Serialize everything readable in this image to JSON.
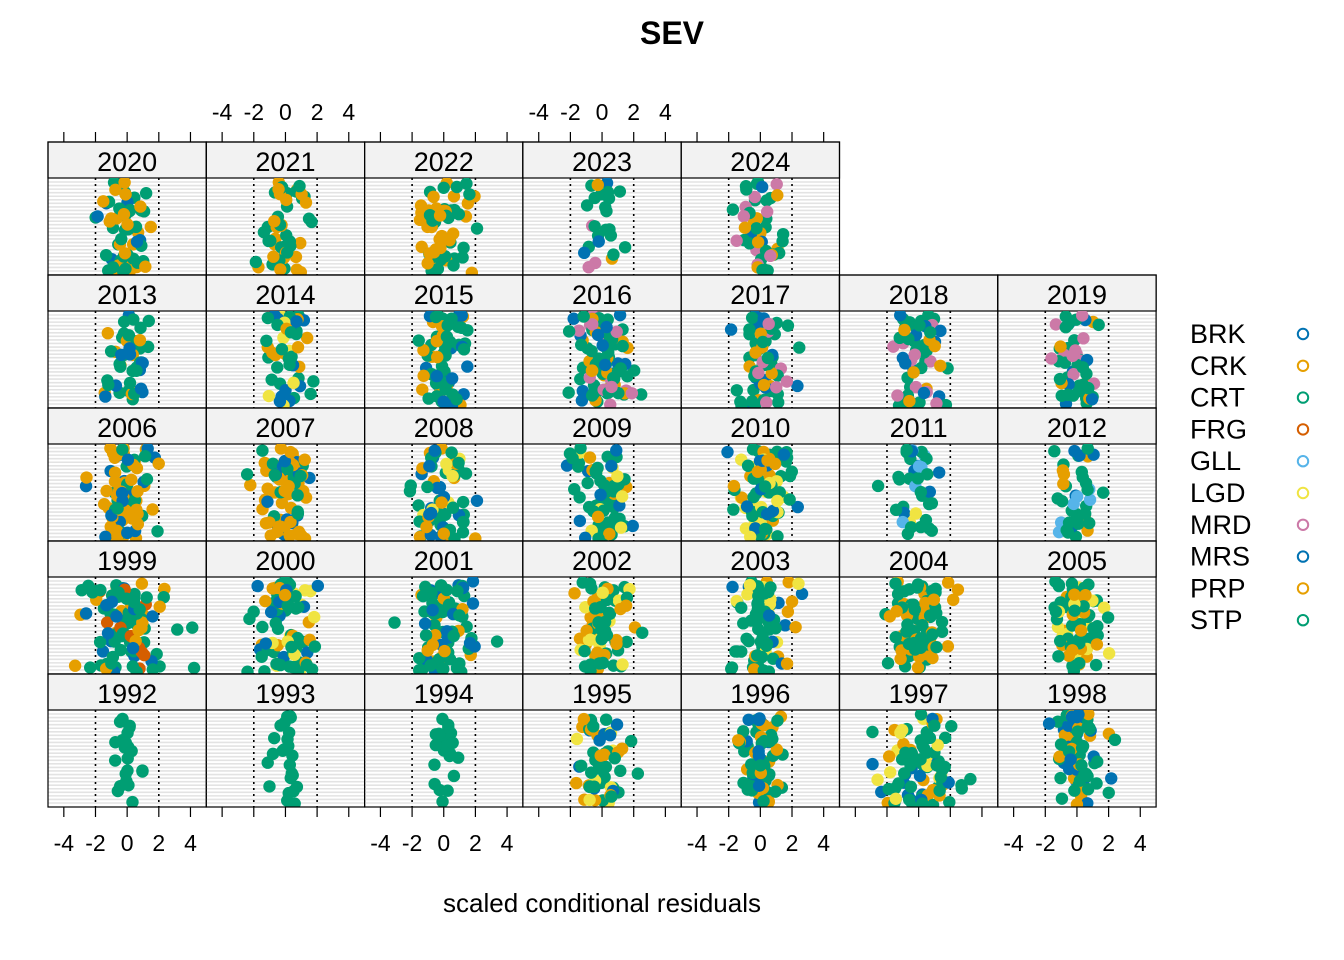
{
  "chart_data": {
    "type": "scatter",
    "title": "SEV",
    "xlabel": "scaled conditional residuals",
    "ylabel": "",
    "xlim": [
      -5,
      5
    ],
    "x_ticks": [
      -4,
      -2,
      0,
      2,
      4
    ],
    "x_tick_labels": [
      "-4",
      "-2",
      "0",
      "2",
      "4"
    ],
    "reference_lines": [
      -2,
      2
    ],
    "grid": true,
    "legend_placement": "right",
    "series": [
      {
        "name": "BRK",
        "color": "#0072B2"
      },
      {
        "name": "CRK",
        "color": "#E69F00"
      },
      {
        "name": "CRT",
        "color": "#009E73"
      },
      {
        "name": "FRG",
        "color": "#D55E00"
      },
      {
        "name": "GLL",
        "color": "#56B4E9"
      },
      {
        "name": "LGD",
        "color": "#F0E442"
      },
      {
        "name": "MRD",
        "color": "#CC79A7"
      },
      {
        "name": "MRS",
        "color": "#0072B2"
      },
      {
        "name": "PRP",
        "color": "#E69F00"
      },
      {
        "name": "STP",
        "color": "#009E73"
      }
    ],
    "panel_rows": [
      [
        "2020",
        "2021",
        "2022",
        "2023",
        "2024"
      ],
      [
        "2013",
        "2014",
        "2015",
        "2016",
        "2017",
        "2018",
        "2019"
      ],
      [
        "2006",
        "2007",
        "2008",
        "2009",
        "2010",
        "2011",
        "2012"
      ],
      [
        "1999",
        "2000",
        "2001",
        "2002",
        "2003",
        "2004",
        "2005"
      ],
      [
        "1992",
        "1993",
        "1994",
        "1995",
        "1996",
        "1997",
        "1998"
      ]
    ],
    "panels": {
      "1992": {
        "groups": [
          "STP"
        ],
        "center": 0.0,
        "spread": 0.7,
        "n": 22
      },
      "1993": {
        "groups": [
          "STP"
        ],
        "center": 0.0,
        "spread": 0.8,
        "n": 24
      },
      "1994": {
        "groups": [
          "STP"
        ],
        "center": 0.0,
        "spread": 0.7,
        "n": 22
      },
      "1995": {
        "groups": [
          "STP",
          "CRK",
          "LGD",
          "BRK"
        ],
        "center": 0.0,
        "spread": 1.6,
        "n": 60
      },
      "1996": {
        "groups": [
          "STP",
          "CRK",
          "BRK"
        ],
        "center": 0.0,
        "spread": 1.7,
        "n": 80
      },
      "1997": {
        "groups": [
          "STP",
          "LGD",
          "BRK",
          "CRK"
        ],
        "center": 0.0,
        "spread": 2.0,
        "n": 90
      },
      "1998": {
        "groups": [
          "STP",
          "CRK",
          "BRK"
        ],
        "center": 0.0,
        "spread": 1.5,
        "n": 80
      },
      "1999": {
        "groups": [
          "STP",
          "BRK",
          "CRK",
          "FRG"
        ],
        "center": 0.0,
        "spread": 2.3,
        "n": 110
      },
      "2000": {
        "groups": [
          "STP",
          "CRK",
          "BRK",
          "LGD"
        ],
        "center": 0.0,
        "spread": 1.7,
        "n": 80
      },
      "2001": {
        "groups": [
          "STP",
          "CRK",
          "BRK"
        ],
        "center": 0.0,
        "spread": 1.8,
        "n": 80
      },
      "2002": {
        "groups": [
          "STP",
          "LGD",
          "CRK"
        ],
        "center": 0.0,
        "spread": 1.7,
        "n": 80
      },
      "2003": {
        "groups": [
          "STP",
          "CRK",
          "LGD",
          "BRK"
        ],
        "center": 0.0,
        "spread": 1.9,
        "n": 80
      },
      "2004": {
        "groups": [
          "STP",
          "CRK"
        ],
        "center": 0.0,
        "spread": 1.8,
        "n": 80
      },
      "2005": {
        "groups": [
          "STP",
          "CRK",
          "LGD"
        ],
        "center": 0.0,
        "spread": 1.3,
        "n": 70
      },
      "2006": {
        "groups": [
          "CRK",
          "STP",
          "BRK"
        ],
        "center": 0.0,
        "spread": 1.7,
        "n": 80
      },
      "2007": {
        "groups": [
          "CRK",
          "STP",
          "BRK"
        ],
        "center": 0.0,
        "spread": 1.8,
        "n": 80
      },
      "2008": {
        "groups": [
          "STP",
          "CRK",
          "LGD",
          "BRK"
        ],
        "center": 0.0,
        "spread": 1.6,
        "n": 70
      },
      "2009": {
        "groups": [
          "STP",
          "LGD",
          "CRK",
          "BRK"
        ],
        "center": 0.0,
        "spread": 1.6,
        "n": 70
      },
      "2010": {
        "groups": [
          "STP",
          "LGD",
          "CRK",
          "BRK"
        ],
        "center": 0.0,
        "spread": 1.8,
        "n": 80
      },
      "2011": {
        "groups": [
          "STP",
          "LGD",
          "GLL",
          "BRK"
        ],
        "center": 0.0,
        "spread": 1.4,
        "n": 40
      },
      "2012": {
        "groups": [
          "STP",
          "GLL",
          "CRK",
          "BRK"
        ],
        "center": 0.0,
        "spread": 1.3,
        "n": 40
      },
      "2013": {
        "groups": [
          "STP",
          "CRK",
          "BRK"
        ],
        "center": 0.0,
        "spread": 1.2,
        "n": 50
      },
      "2014": {
        "groups": [
          "STP",
          "CRK",
          "BRK",
          "LGD"
        ],
        "center": 0.0,
        "spread": 1.2,
        "n": 50
      },
      "2015": {
        "groups": [
          "STP",
          "CRK",
          "BRK"
        ],
        "center": 0.0,
        "spread": 1.5,
        "n": 70
      },
      "2016": {
        "groups": [
          "STP",
          "CRK",
          "BRK",
          "MRD"
        ],
        "center": 0.0,
        "spread": 1.8,
        "n": 90
      },
      "2017": {
        "groups": [
          "STP",
          "CRK",
          "BRK",
          "MRD"
        ],
        "center": 0.0,
        "spread": 1.6,
        "n": 70
      },
      "2018": {
        "groups": [
          "STP",
          "CRK",
          "MRD",
          "BRK"
        ],
        "center": 0.0,
        "spread": 1.6,
        "n": 60
      },
      "2019": {
        "groups": [
          "STP",
          "CRK",
          "BRK",
          "MRD"
        ],
        "center": 0.0,
        "spread": 1.4,
        "n": 50
      },
      "2020": {
        "groups": [
          "STP",
          "CRK",
          "BRK"
        ],
        "center": 0.0,
        "spread": 1.5,
        "n": 60
      },
      "2021": {
        "groups": [
          "STP",
          "CRK"
        ],
        "center": 0.0,
        "spread": 1.4,
        "n": 50
      },
      "2022": {
        "groups": [
          "STP",
          "CRK"
        ],
        "center": 0.0,
        "spread": 1.5,
        "n": 60
      },
      "2023": {
        "groups": [
          "STP",
          "BRK",
          "CRK",
          "MRD"
        ],
        "center": 0.0,
        "spread": 1.0,
        "n": 25
      },
      "2024": {
        "groups": [
          "STP",
          "CRK",
          "BRK",
          "MRD"
        ],
        "center": 0.0,
        "spread": 1.3,
        "n": 45
      }
    }
  }
}
